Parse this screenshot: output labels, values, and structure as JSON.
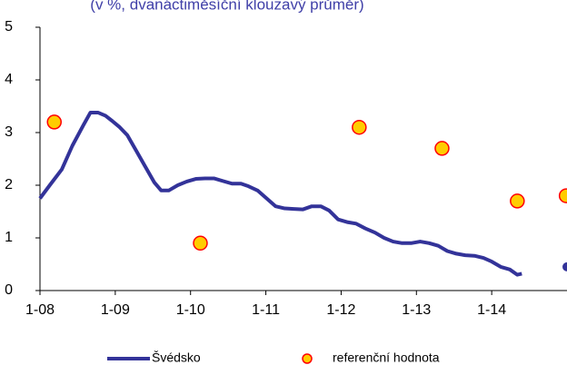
{
  "chart_data": {
    "type": "line",
    "subtitle": "(v %, dvanáctiměsíční klouzavý průměr)",
    "xlim": [
      2008,
      2015
    ],
    "ylim": [
      0,
      5
    ],
    "xticks": [
      {
        "value": 2008,
        "label": "1-08"
      },
      {
        "value": 2009,
        "label": "1-09"
      },
      {
        "value": 2010,
        "label": "1-10"
      },
      {
        "value": 2011,
        "label": "1-11"
      },
      {
        "value": 2012,
        "label": "1-12"
      },
      {
        "value": 2013,
        "label": "1-13"
      },
      {
        "value": 2014,
        "label": "1-14"
      }
    ],
    "yticks": [
      0,
      1,
      2,
      3,
      4,
      5
    ],
    "series": [
      {
        "name": "Švédsko",
        "color": "#333399",
        "kind": "line",
        "x": [
          2008.0,
          2008.13,
          2008.29,
          2008.43,
          2008.58,
          2008.67,
          2008.77,
          2008.87,
          2008.96,
          2009.06,
          2009.16,
          2009.28,
          2009.4,
          2009.52,
          2009.61,
          2009.71,
          2009.83,
          2009.95,
          2010.07,
          2010.19,
          2010.31,
          2010.43,
          2010.55,
          2010.67,
          2010.77,
          2010.89,
          2011.01,
          2011.13,
          2011.25,
          2011.37,
          2011.49,
          2011.61,
          2011.73,
          2011.84,
          2011.96,
          2012.08,
          2012.2,
          2012.32,
          2012.45,
          2012.57,
          2012.69,
          2012.81,
          2012.93,
          2013.05,
          2013.17,
          2013.29,
          2013.41,
          2013.53,
          2013.65,
          2013.77,
          2013.89,
          2014.0,
          2014.12,
          2014.24,
          2014.34,
          2014.4,
          2014.7,
          2015.0
        ],
        "values": [
          1.75,
          2.0,
          2.3,
          2.75,
          3.15,
          3.38,
          3.38,
          3.32,
          3.22,
          3.1,
          2.95,
          2.65,
          2.35,
          2.05,
          1.9,
          1.9,
          2.0,
          2.07,
          2.12,
          2.13,
          2.13,
          2.08,
          2.03,
          2.03,
          1.98,
          1.9,
          1.75,
          1.6,
          1.56,
          1.55,
          1.54,
          1.6,
          1.6,
          1.52,
          1.35,
          1.3,
          1.27,
          1.18,
          1.1,
          1.0,
          0.93,
          0.9,
          0.9,
          0.93,
          0.9,
          0.85,
          0.75,
          0.7,
          0.67,
          0.66,
          0.62,
          0.55,
          0.45,
          0.4,
          0.3,
          0.32,
          null,
          0.45
        ]
      },
      {
        "name": "referenční hodnota",
        "color": "#ffcc00",
        "edge": "#ff0000",
        "kind": "scatter",
        "x": [
          2008.19,
          2010.13,
          2012.24,
          2013.34,
          2014.34,
          2014.99
        ],
        "values": [
          3.2,
          0.9,
          3.1,
          2.7,
          1.7,
          1.8
        ]
      }
    ]
  }
}
